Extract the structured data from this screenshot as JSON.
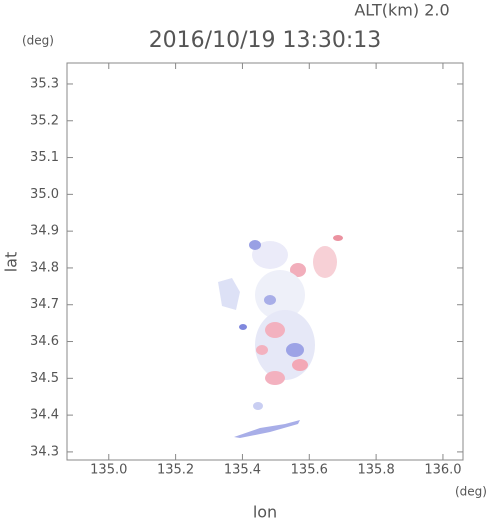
{
  "chart_data": {
    "type": "map",
    "title": "2016/10/19 13:30:13",
    "altitude_label": "ALT(km) 2.0",
    "y_unit": "(deg)",
    "x_unit": "(deg)",
    "xlabel": "lon",
    "ylabel": "lat",
    "xlim": [
      134.875,
      136.06
    ],
    "ylim": [
      34.278,
      35.357
    ],
    "xticks": [
      {
        "value": 135,
        "label": "135.0"
      },
      135.2,
      135.4,
      135.6,
      135.8,
      {
        "value": 136,
        "label": "136.0"
      }
    ],
    "yticks": [
      34.3,
      34.4,
      34.5,
      34.6,
      34.7,
      34.8,
      34.9,
      {
        "value": 35,
        "label": "35.0"
      },
      35.1,
      35.2,
      35.3
    ]
  }
}
